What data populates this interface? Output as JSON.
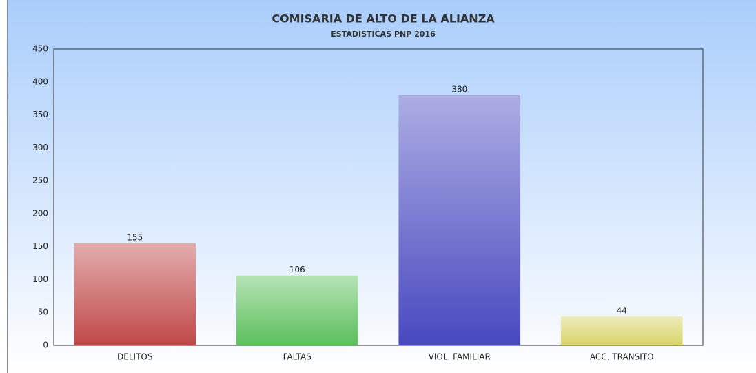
{
  "chart_data": {
    "type": "bar",
    "title": "COMISARIA DE ALTO DE LA ALIANZA",
    "subtitle": "ESTADISTICAS PNP 2016",
    "categories": [
      "DELITOS",
      "FALTAS",
      "VIOL. FAMILIAR",
      "ACC. TRANSITO"
    ],
    "values": [
      155,
      106,
      380,
      44
    ],
    "colors": [
      "#c04848",
      "#5cc05c",
      "#4848c0",
      "#d8d468"
    ],
    "ylim": [
      0,
      450
    ],
    "yticks": [
      0,
      50,
      100,
      150,
      200,
      250,
      300,
      350,
      400,
      450
    ],
    "grid": false
  }
}
